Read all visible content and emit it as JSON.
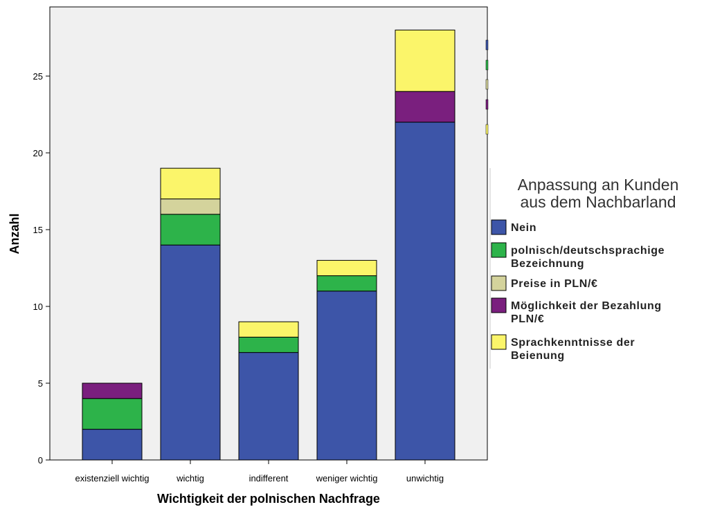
{
  "chart_data": {
    "type": "bar",
    "stacked": true,
    "xlabel": "Wichtigkeit der polnischen Nachfrage",
    "ylabel": "Anzahl",
    "ylim": [
      0,
      29
    ],
    "yticks": [
      0,
      5,
      10,
      15,
      20,
      25
    ],
    "categories": [
      "existenziell wichtig",
      "wichtig",
      "indifferent",
      "weniger wichtig",
      "unwichtig"
    ],
    "legend": {
      "title_lines": [
        "Anpassung an Kunden",
        "aus dem Nachbarland"
      ],
      "placement": "right"
    },
    "series": [
      {
        "name_lines": [
          "Nein"
        ],
        "color": "#3d55a8",
        "values": [
          2,
          14,
          7,
          11,
          22
        ]
      },
      {
        "name_lines": [
          "polnisch/deutschsprachige",
          "Bezeichnung"
        ],
        "color": "#2db34a",
        "values": [
          2,
          2,
          1,
          1,
          0
        ]
      },
      {
        "name_lines": [
          "Preise in PLN/€"
        ],
        "color": "#d4d39c",
        "values": [
          0,
          1,
          0,
          0,
          0
        ]
      },
      {
        "name_lines": [
          "Möglichkeit der Bezahlung",
          "PLN/€"
        ],
        "color": "#7a1f7e",
        "values": [
          1,
          0,
          0,
          0,
          2
        ]
      },
      {
        "name_lines": [
          "Sprachkenntnisse der",
          "Beienung"
        ],
        "color": "#fbf56a",
        "values": [
          0,
          2,
          1,
          1,
          4
        ]
      }
    ]
  }
}
